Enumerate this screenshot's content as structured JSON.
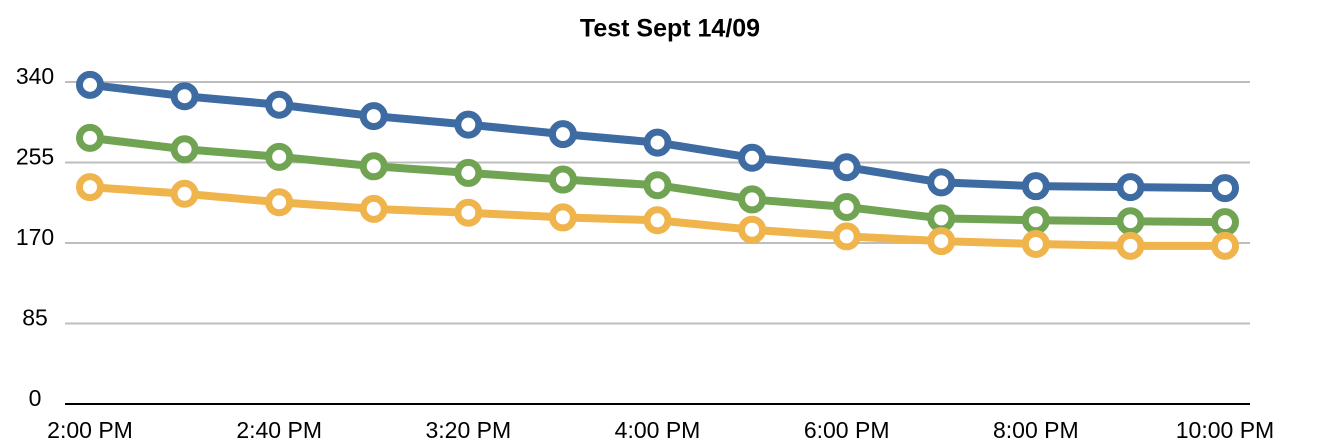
{
  "chart_data": {
    "type": "line",
    "title": "Test Sept 14/09",
    "categories": [
      "2:00 PM",
      null,
      "2:40 PM",
      null,
      "3:20 PM",
      null,
      "4:00 PM",
      null,
      "6:00 PM",
      null,
      "8:00 PM",
      null,
      "10:00 PM"
    ],
    "series": [
      {
        "color": "#3e6ba1",
        "values": [
          337,
          325,
          316,
          304,
          295,
          285,
          276,
          260,
          250,
          234,
          230,
          229,
          228
        ]
      },
      {
        "color": "#70a453",
        "values": [
          281,
          269,
          261,
          251,
          244,
          237,
          231,
          216,
          208,
          196,
          194,
          193,
          192
        ]
      },
      {
        "color": "#f0b44c",
        "values": [
          229,
          222,
          213,
          206,
          202,
          197,
          194,
          184,
          177,
          172,
          169,
          167,
          167
        ]
      }
    ],
    "ylim": [
      0,
      340
    ],
    "yticks": [
      0,
      85,
      170,
      255,
      340
    ],
    "grid": true
  }
}
